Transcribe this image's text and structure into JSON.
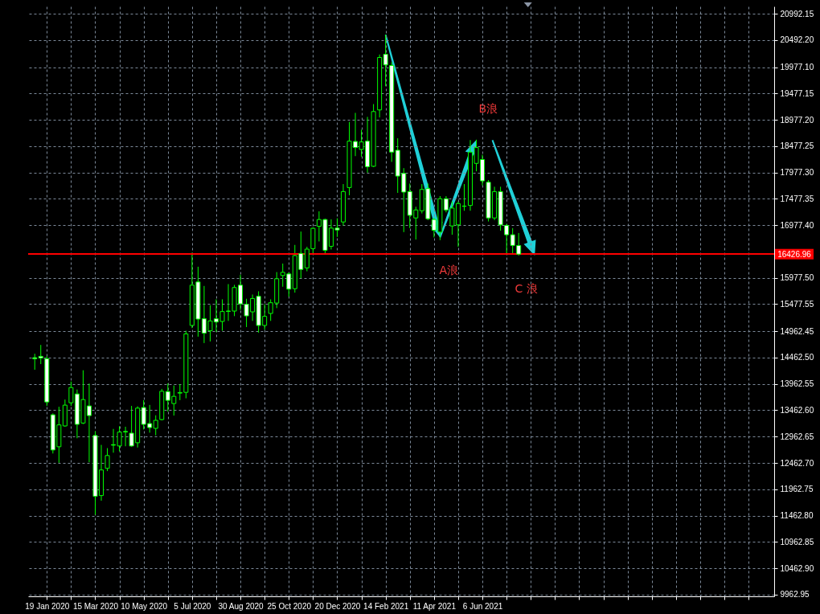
{
  "chart_data": {
    "type": "candlestick",
    "color": "#00ff00",
    "grid": true,
    "x": [
      "2020-01-05",
      "2020-01-12",
      "2020-01-19",
      "2020-01-26",
      "2020-02-02",
      "2020-02-09",
      "2020-02-16",
      "2020-02-23",
      "2020-03-01",
      "2020-03-08",
      "2020-03-15",
      "2020-03-22",
      "2020-03-29",
      "2020-04-05",
      "2020-04-12",
      "2020-04-19",
      "2020-04-26",
      "2020-05-03",
      "2020-05-10",
      "2020-05-17",
      "2020-05-24",
      "2020-05-31",
      "2020-06-07",
      "2020-06-14",
      "2020-06-21",
      "2020-06-28",
      "2020-07-05",
      "2020-07-12",
      "2020-07-19",
      "2020-07-26",
      "2020-08-02",
      "2020-08-09",
      "2020-08-16",
      "2020-08-23",
      "2020-08-30",
      "2020-09-06",
      "2020-09-13",
      "2020-09-20",
      "2020-09-27",
      "2020-10-04",
      "2020-10-11",
      "2020-10-18",
      "2020-10-25",
      "2020-11-01",
      "2020-11-08",
      "2020-11-15",
      "2020-11-22",
      "2020-11-29",
      "2020-12-06",
      "2020-12-13",
      "2020-12-20",
      "2020-12-27",
      "2021-01-03",
      "2021-01-10",
      "2021-01-17",
      "2021-01-24",
      "2021-01-31",
      "2021-02-07",
      "2021-02-14",
      "2021-02-21",
      "2021-02-28",
      "2021-03-07",
      "2021-03-14",
      "2021-03-21",
      "2021-03-28",
      "2021-04-04",
      "2021-04-11",
      "2021-04-18",
      "2021-04-25",
      "2021-05-02",
      "2021-05-09",
      "2021-05-16",
      "2021-05-23",
      "2021-05-30",
      "2021-06-06",
      "2021-06-13",
      "2021-06-20",
      "2021-06-27",
      "2021-07-04",
      "2021-07-11",
      "2021-07-18"
    ],
    "ohlc": [
      [
        14460,
        14536,
        14232,
        14440
      ],
      [
        14486,
        14703,
        14339,
        14456
      ],
      [
        14441,
        14491,
        13544,
        13620
      ],
      [
        13377,
        13402,
        12642,
        12709
      ],
      [
        12770,
        13529,
        12466,
        13185
      ],
      [
        13165,
        13666,
        13150,
        13560
      ],
      [
        13605,
        14009,
        13545,
        13894
      ],
      [
        13772,
        13857,
        12931,
        13195
      ],
      [
        13220,
        14222,
        13200,
        13666
      ],
      [
        13545,
        13970,
        12475,
        13362
      ],
      [
        12983,
        13063,
        11479,
        11828
      ],
      [
        11843,
        12805,
        11746,
        12329
      ],
      [
        12360,
        12744,
        12308,
        12603
      ],
      [
        12809,
        13108,
        12657,
        12800
      ],
      [
        12785,
        13159,
        12683,
        13048
      ],
      [
        13060,
        13150,
        12779,
        13050
      ],
      [
        13028,
        13545,
        12770,
        12785
      ],
      [
        12846,
        13538,
        12755,
        13503
      ],
      [
        13514,
        13655,
        13098,
        13195
      ],
      [
        13210,
        13564,
        13037,
        13134
      ],
      [
        13119,
        13367,
        12987,
        13271
      ],
      [
        13286,
        13868,
        13270,
        13823
      ],
      [
        13818,
        13970,
        13438,
        13651
      ],
      [
        13590,
        13933,
        13362,
        13727
      ],
      [
        13788,
        13959,
        13655,
        13800
      ],
      [
        13803,
        14972,
        13690,
        14912
      ],
      [
        15073,
        16455,
        15023,
        15838
      ],
      [
        15899,
        16188,
        14860,
        15194
      ],
      [
        15200,
        15823,
        14738,
        14927
      ],
      [
        14972,
        15458,
        14769,
        15159
      ],
      [
        15200,
        15569,
        14947,
        15139
      ],
      [
        15149,
        15569,
        14972,
        15337
      ],
      [
        15347,
        15858,
        15159,
        15340
      ],
      [
        15346,
        15843,
        15250,
        15793
      ],
      [
        15838,
        16036,
        15367,
        15483
      ],
      [
        15474,
        15580,
        15042,
        15255
      ],
      [
        15331,
        15660,
        15159,
        15585
      ],
      [
        15626,
        15721,
        14936,
        15073
      ],
      [
        15073,
        15478,
        14992,
        15246
      ],
      [
        15301,
        15569,
        15159,
        15504
      ],
      [
        15498,
        16086,
        15402,
        15960
      ],
      [
        16021,
        16248,
        15808,
        16081
      ],
      [
        16051,
        16080,
        15619,
        15762
      ],
      [
        15771,
        16602,
        15696,
        16400
      ],
      [
        16440,
        16856,
        15969,
        16136
      ],
      [
        16166,
        16567,
        16101,
        16522
      ],
      [
        16531,
        16936,
        16440,
        16917
      ],
      [
        16956,
        17240,
        16668,
        17084
      ],
      [
        17084,
        17100,
        16440,
        16500
      ],
      [
        16576,
        17088,
        16515,
        16921
      ],
      [
        16921,
        17108,
        16754,
        16886
      ],
      [
        17038,
        17757,
        16971,
        17615
      ],
      [
        17691,
        18937,
        17544,
        18572
      ],
      [
        18566,
        19109,
        18288,
        18451
      ],
      [
        18414,
        18790,
        18278,
        18557
      ],
      [
        18572,
        19033,
        17974,
        18086
      ],
      [
        18095,
        19276,
        18080,
        19134
      ],
      [
        19165,
        20217,
        19022,
        20161
      ],
      [
        20222,
        20593,
        19614,
        20020
      ],
      [
        20009,
        20070,
        18178,
        18364
      ],
      [
        18399,
        18627,
        17590,
        17909
      ],
      [
        17959,
        18060,
        16845,
        17605
      ],
      [
        17615,
        17767,
        16921,
        17164
      ],
      [
        17114,
        17327,
        16704,
        17266
      ],
      [
        17251,
        17757,
        17200,
        17655
      ],
      [
        17670,
        17767,
        17073,
        17099
      ],
      [
        17084,
        17119,
        16744,
        16880
      ],
      [
        16845,
        17529,
        16693,
        17479
      ],
      [
        17479,
        17529,
        17220,
        17266
      ],
      [
        16962,
        17427,
        16795,
        17301
      ],
      [
        16982,
        17427,
        16567,
        17388
      ],
      [
        17335,
        17757,
        17250,
        17340
      ],
      [
        17351,
        18592,
        17251,
        18364
      ],
      [
        18150,
        18600,
        18000,
        18450
      ],
      [
        18223,
        18314,
        17731,
        17818
      ],
      [
        17792,
        17833,
        17047,
        17114
      ],
      [
        17114,
        17707,
        17073,
        17615
      ],
      [
        17615,
        17707,
        16871,
        16982
      ],
      [
        16971,
        17000,
        16440,
        16795
      ],
      [
        16795,
        16921,
        16440,
        16592
      ],
      [
        16590,
        16828,
        16400,
        16426.96
      ]
    ],
    "xlim": [
      "2020-01-02",
      "2022-05-05"
    ],
    "xticks": [
      {
        "value": "2020-01-19",
        "label": "19 Jan 2020"
      },
      {
        "value": "2020-02-16",
        "label": null
      },
      {
        "value": "2020-03-15",
        "label": "15 Mar 2020"
      },
      {
        "value": "2020-04-12",
        "label": null
      },
      {
        "value": "2020-05-10",
        "label": "10 May 2020"
      },
      {
        "value": "2020-06-07",
        "label": null
      },
      {
        "value": "2020-07-05",
        "label": "5 Jul 2020"
      },
      {
        "value": "2020-08-02",
        "label": null
      },
      {
        "value": "2020-08-30",
        "label": "30 Aug 2020"
      },
      {
        "value": "2020-09-27",
        "label": null
      },
      {
        "value": "2020-10-25",
        "label": "25 Oct 2020"
      },
      {
        "value": "2020-11-22",
        "label": null
      },
      {
        "value": "2020-12-20",
        "label": "20 Dec 2020"
      },
      {
        "value": "2021-01-17",
        "label": null
      },
      {
        "value": "2021-02-14",
        "label": "14 Feb 2021"
      },
      {
        "value": "2021-03-14",
        "label": null
      },
      {
        "value": "2021-04-11",
        "label": "11 Apr 2021"
      },
      {
        "value": "2021-05-09",
        "label": null
      },
      {
        "value": "2021-06-06",
        "label": "6 Jun 2021"
      },
      {
        "value": "2021-07-04",
        "label": null
      },
      {
        "value": "2021-08-01",
        "label": null
      },
      {
        "value": "2021-08-29",
        "label": null
      },
      {
        "value": "2021-09-26",
        "label": null
      },
      {
        "value": "2021-10-24",
        "label": null
      },
      {
        "value": "2021-11-21",
        "label": null
      },
      {
        "value": "2021-12-19",
        "label": null
      },
      {
        "value": "2022-01-16",
        "label": null
      },
      {
        "value": "2022-02-13",
        "label": null
      },
      {
        "value": "2022-03-13",
        "label": null
      },
      {
        "value": "2022-04-10",
        "label": null
      }
    ],
    "ylim": [
      9930,
      21130
    ],
    "yticks": [
      20992.15,
      {
        "value": 20492.2,
        "label": "20492.20"
      },
      {
        "value": 19977.1,
        "label": "19977.10"
      },
      19477.15,
      {
        "value": 18977.2,
        "label": "18977.20"
      },
      18477.25,
      {
        "value": 17977.3,
        "label": "17977.30"
      },
      17477.35,
      {
        "value": 16977.4,
        "label": "16977.40"
      },
      {
        "value": 15977.5,
        "label": "15977.50"
      },
      15477.55,
      14962.45,
      {
        "value": 14462.5,
        "label": "14462.50"
      },
      13962.55,
      {
        "value": 13462.6,
        "label": "13462.60"
      },
      12962.65,
      {
        "value": 12462.7,
        "label": "12462.70"
      },
      11962.75,
      {
        "value": 11462.8,
        "label": "11462.80"
      },
      10962.85,
      {
        "value": 10462.9,
        "label": "10462.90"
      },
      9962.95
    ],
    "ref_lines": [
      {
        "axis": "y",
        "value": 16426.96,
        "label": "16426.96",
        "color": "#ff0000"
      }
    ],
    "annotations": [
      {
        "text": "A浪",
        "x": "2021-04-18",
        "y": 16744
      },
      {
        "text": "B浪",
        "x": "2021-05-30",
        "y": 18592
      },
      {
        "text": "C 浪",
        "x": "2021-07-18",
        "y": 16400
      }
    ]
  }
}
